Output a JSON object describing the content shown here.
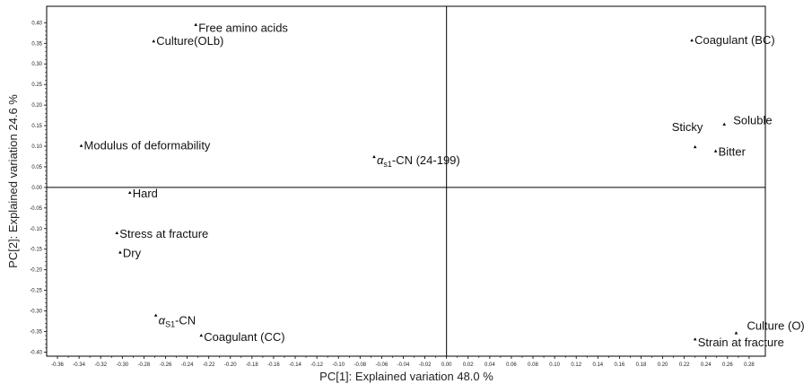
{
  "chart_data": {
    "type": "scatter",
    "xlabel": "PC[1]: Explained variation 48.0 %",
    "ylabel": "PC[2]: Explained variation 24.6 %",
    "xlim": [
      -0.37,
      0.295
    ],
    "ylim": [
      -0.41,
      0.44
    ],
    "x_ticks": [
      -0.36,
      -0.34,
      -0.32,
      -0.3,
      -0.28,
      -0.26,
      -0.24,
      -0.22,
      -0.2,
      -0.18,
      -0.16,
      -0.14,
      -0.12,
      -0.1,
      -0.08,
      -0.06,
      -0.04,
      -0.02,
      0.0,
      0.02,
      0.04,
      0.06,
      0.08,
      0.1,
      0.12,
      0.14,
      0.16,
      0.18,
      0.2,
      0.22,
      0.24,
      0.26,
      0.28
    ],
    "y_ticks": [
      0.4,
      0.35,
      0.3,
      0.25,
      0.2,
      0.15,
      0.1,
      0.05,
      0.0,
      -0.05,
      -0.1,
      -0.15,
      -0.2,
      -0.25,
      -0.3,
      -0.35,
      -0.4
    ],
    "grid": false,
    "points": [
      {
        "label": "Free amino acids",
        "x": -0.232,
        "y": 0.395
      },
      {
        "label": "Culture(OLb)",
        "x": -0.271,
        "y": 0.355
      },
      {
        "label": "Coagulant (BC)",
        "x": 0.227,
        "y": 0.357
      },
      {
        "label": "Soluble",
        "x": 0.257,
        "y": 0.153
      },
      {
        "label": "Sticky",
        "x": 0.23,
        "y": 0.098
      },
      {
        "label": "Bitter",
        "x": 0.249,
        "y": 0.088
      },
      {
        "label": "Modulus of deformability",
        "x": -0.338,
        "y": 0.101
      },
      {
        "label": "αs1-CN (24-199)",
        "label_main": "α",
        "label_sub": "s1",
        "label_rest": "-CN (24-199)",
        "x": -0.067,
        "y": 0.074
      },
      {
        "label": "Hard",
        "x": -0.293,
        "y": -0.013
      },
      {
        "label": "Stress at fracture",
        "x": -0.305,
        "y": -0.111
      },
      {
        "label": "Dry",
        "x": -0.302,
        "y": -0.158
      },
      {
        "label": "αS1-CN",
        "label_main": "α",
        "label_sub": "S1",
        "label_rest": "-CN",
        "x": -0.269,
        "y": -0.311
      },
      {
        "label": "Coagulant (CC)",
        "x": -0.227,
        "y": -0.36
      },
      {
        "label": "Culture (O)",
        "x": 0.268,
        "y": -0.354
      },
      {
        "label": "Strain at fracture",
        "x": 0.23,
        "y": -0.369
      }
    ]
  },
  "colors": {
    "marker": "#000000",
    "axis": "#000000",
    "background": "#ffffff"
  }
}
